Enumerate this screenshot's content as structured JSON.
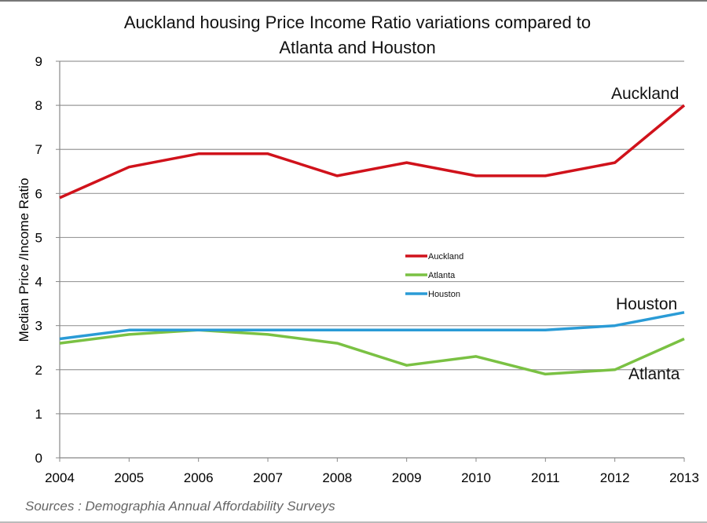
{
  "chart_data": {
    "type": "line",
    "title_lines": [
      "Auckland housing Price Income Ratio variations compared to",
      "Atlanta and Houston"
    ],
    "xlabel": "",
    "ylabel": "Median Price /Income Ratio",
    "x": [
      "2004",
      "2005",
      "2006",
      "2007",
      "2008",
      "2009",
      "2010",
      "2011",
      "2012",
      "2013"
    ],
    "ylim": [
      0,
      9
    ],
    "yticks": [
      "0",
      "1",
      "2",
      "3",
      "4",
      "5",
      "6",
      "7",
      "8",
      "9"
    ],
    "grid": true,
    "legend_position": "center",
    "series": [
      {
        "name": "Auckland",
        "color": "#d0121b",
        "values": [
          5.9,
          6.6,
          6.9,
          6.9,
          6.4,
          6.7,
          6.4,
          6.4,
          6.7,
          8.0
        ]
      },
      {
        "name": "Atlanta",
        "color": "#7ac143",
        "values": [
          2.6,
          2.8,
          2.9,
          2.8,
          2.6,
          2.1,
          2.3,
          1.9,
          2.0,
          2.7
        ]
      },
      {
        "name": "Houston",
        "color": "#2a9bd6",
        "values": [
          2.7,
          2.9,
          2.9,
          2.9,
          2.9,
          2.9,
          2.9,
          2.9,
          3.0,
          3.3
        ]
      }
    ],
    "series_labels": [
      "Auckland",
      "Houston",
      "Atlanta"
    ],
    "source": "Sources : Demographia Annual Affordability Surveys"
  }
}
